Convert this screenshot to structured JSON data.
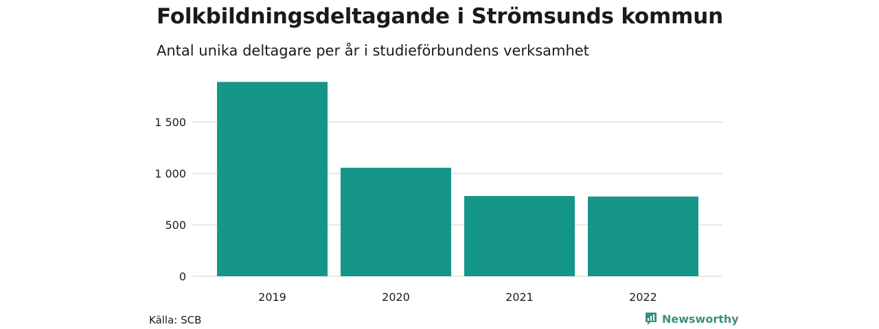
{
  "header": {
    "title": "Folkbildningsdeltagande i Strömsunds kommun",
    "subtitle": "Antal unika deltagare per år i studieförbundens verksamhet"
  },
  "footer": {
    "source": "Källa: SCB",
    "brand": "Newsworthy",
    "brand_icon": "newsworthy-logo-icon"
  },
  "colors": {
    "bar": "#159688",
    "grid": "#e0e0e0",
    "brand": "#3b8f83"
  },
  "chart_data": {
    "type": "bar",
    "title": "Folkbildningsdeltagande i Strömsunds kommun",
    "subtitle": "Antal unika deltagare per år i studieförbundens verksamhet",
    "categories": [
      "2019",
      "2020",
      "2021",
      "2022"
    ],
    "values": [
      1890,
      1055,
      780,
      775
    ],
    "ylim": [
      0,
      1900
    ],
    "yticks": [
      0,
      500,
      1000,
      1500
    ],
    "ytick_labels": [
      "0",
      "500",
      "1 000",
      "1 500"
    ],
    "grid": true,
    "legend": "none"
  }
}
